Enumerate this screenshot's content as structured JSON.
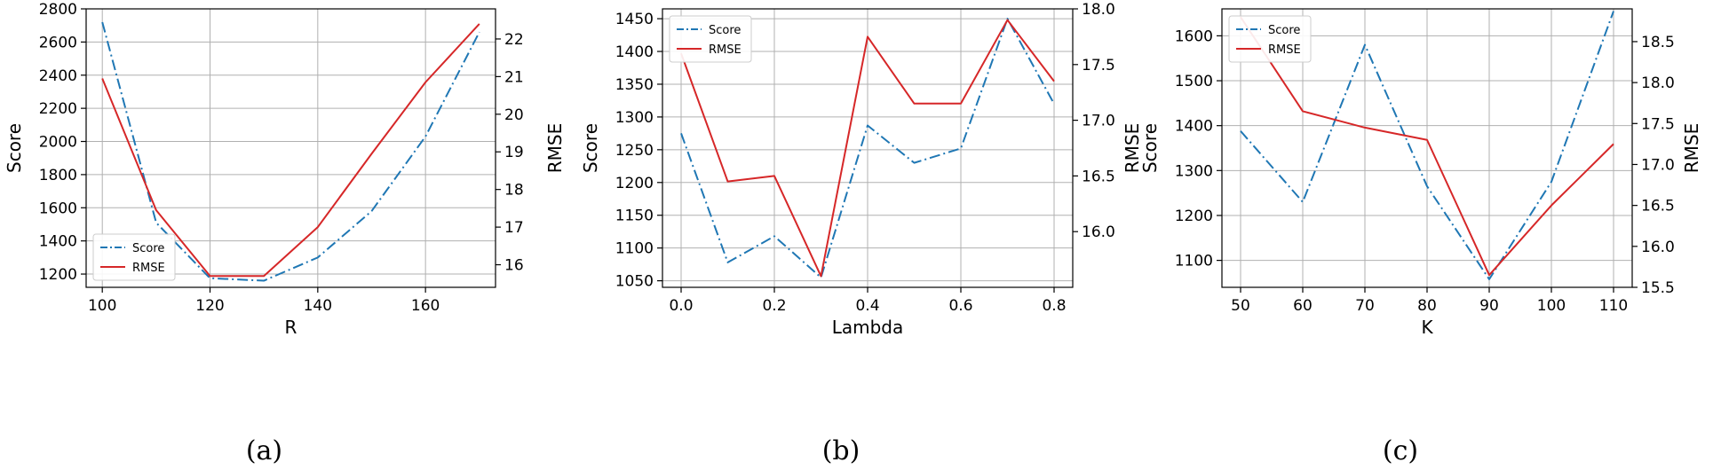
{
  "colors": {
    "score": "#1f77b4",
    "rmse": "#d62728",
    "grid": "#b0b0b0"
  },
  "chart_data": [
    {
      "type": "line",
      "caption": "(a)",
      "xlabel": "R",
      "ylabel": "Score",
      "y2label": "RMSE",
      "x": [
        100,
        110,
        120,
        130,
        140,
        150,
        160,
        170
      ],
      "xlim": [
        97,
        173
      ],
      "xticks": [
        100,
        120,
        140,
        160
      ],
      "ylim": [
        1120,
        2800
      ],
      "yticks": [
        1200,
        1400,
        1600,
        1800,
        2000,
        2200,
        2400,
        2600,
        2800
      ],
      "y2lim": [
        15.4,
        22.8
      ],
      "y2ticks": [
        16,
        17,
        18,
        19,
        20,
        21,
        22
      ],
      "grid": true,
      "legend": "lower-left",
      "series": [
        {
          "name": "Score",
          "axis": "left",
          "style": "dashdot",
          "values": [
            2720,
            1510,
            1175,
            1160,
            1300,
            1580,
            2030,
            2660
          ]
        },
        {
          "name": "RMSE",
          "axis": "right",
          "style": "solid",
          "values": [
            20.95,
            17.45,
            15.7,
            15.7,
            17.0,
            18.95,
            20.85,
            22.4
          ]
        }
      ]
    },
    {
      "type": "line",
      "caption": "(b)",
      "xlabel": "Lambda",
      "ylabel": "Score",
      "y2label": "RMSE",
      "x": [
        0.0,
        0.1,
        0.2,
        0.3,
        0.4,
        0.5,
        0.6,
        0.7,
        0.8
      ],
      "xlim": [
        -0.04,
        0.84
      ],
      "xticks": [
        "0.0",
        "0.2",
        "0.4",
        "0.6",
        "0.8"
      ],
      "ylim": [
        1040,
        1465
      ],
      "yticks": [
        1050,
        1100,
        1150,
        1200,
        1250,
        1300,
        1350,
        1400,
        1450
      ],
      "y2lim": [
        15.5,
        18.0
      ],
      "y2ticks": [
        "16.0",
        "16.5",
        "17.0",
        "17.5",
        "18.0"
      ],
      "grid": true,
      "legend": "upper-left",
      "series": [
        {
          "name": "Score",
          "axis": "left",
          "style": "dashdot",
          "values": [
            1275,
            1078,
            1118,
            1055,
            1287,
            1230,
            1252,
            1450,
            1320
          ]
        },
        {
          "name": "RMSE",
          "axis": "right",
          "style": "solid",
          "values": [
            17.6,
            16.45,
            16.5,
            15.6,
            17.75,
            17.15,
            17.15,
            17.9,
            17.35
          ]
        }
      ]
    },
    {
      "type": "line",
      "caption": "(c)",
      "xlabel": "K",
      "ylabel": "Score",
      "y2label": "RMSE",
      "x": [
        50,
        60,
        70,
        80,
        90,
        100,
        110
      ],
      "xlim": [
        47,
        113
      ],
      "xticks": [
        50,
        60,
        70,
        80,
        90,
        100,
        110
      ],
      "ylim": [
        1040,
        1660
      ],
      "yticks": [
        1100,
        1200,
        1300,
        1400,
        1500,
        1600
      ],
      "y2lim": [
        15.5,
        18.9
      ],
      "y2ticks": [
        "15.5",
        "16.0",
        "16.5",
        "17.0",
        "17.5",
        "18.0",
        "18.5"
      ],
      "grid": true,
      "legend": "upper-left",
      "series": [
        {
          "name": "Score",
          "axis": "left",
          "style": "dashdot",
          "values": [
            1388,
            1230,
            1580,
            1265,
            1058,
            1275,
            1655
          ]
        },
        {
          "name": "RMSE",
          "axis": "right",
          "style": "solid",
          "values": [
            18.8,
            17.65,
            17.45,
            17.3,
            15.65,
            16.5,
            17.25
          ]
        }
      ]
    }
  ]
}
